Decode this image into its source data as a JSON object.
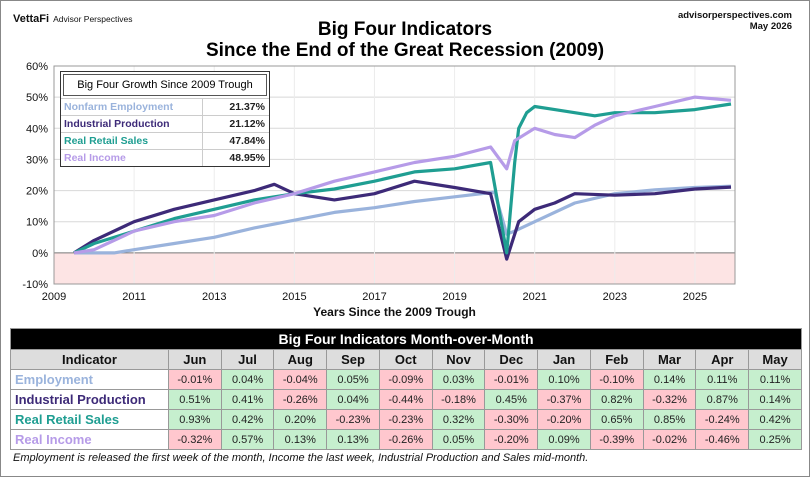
{
  "header": {
    "logo": "VettaFi",
    "logo_sub": "Advisor Perspectives",
    "site": "advisorperspectives.com",
    "date": "May 2026",
    "title_line1": "Big Four Indicators",
    "title_line2": "Since the End of the Great Recession (2009)"
  },
  "colors": {
    "employment": "#9ab3dc",
    "industrial": "#3d2a78",
    "retail": "#1f9e92",
    "income": "#b69be8",
    "negative_zone": "#fde4e4",
    "cell_pos": "#c6efce",
    "cell_neg": "#ffc7ce"
  },
  "legend": {
    "title": "Big Four Growth Since 2009 Trough",
    "items": [
      {
        "name": "Nonfarm Employment",
        "value": "21.37%"
      },
      {
        "name": "Industrial Production",
        "value": "21.12%"
      },
      {
        "name": "Real Retail Sales",
        "value": "47.84%"
      },
      {
        "name": "Real Income",
        "value": "48.95%"
      }
    ]
  },
  "chart_data": {
    "type": "line",
    "title": "Big Four Indicators Since the End of the Great Recession (2009)",
    "xlabel": "Years Since the 2009 Trough",
    "ylabel": "",
    "xlim": [
      2009,
      2026
    ],
    "ylim": [
      -10,
      60
    ],
    "x_ticks": [
      "2009",
      "2011",
      "2013",
      "2015",
      "2017",
      "2019",
      "2021",
      "2023",
      "2025"
    ],
    "y_ticks": [
      "-10%",
      "0%",
      "10%",
      "20%",
      "30%",
      "40%",
      "50%",
      "60%"
    ],
    "grid": true,
    "series": [
      {
        "name": "Nonfarm Employment",
        "points": [
          [
            2009.5,
            0
          ],
          [
            2010.5,
            0
          ],
          [
            2011,
            1
          ],
          [
            2012,
            3
          ],
          [
            2013,
            5
          ],
          [
            2014,
            8
          ],
          [
            2015,
            10.5
          ],
          [
            2016,
            13
          ],
          [
            2017,
            14.5
          ],
          [
            2018,
            16.5
          ],
          [
            2019,
            18
          ],
          [
            2020,
            19.5
          ],
          [
            2020.3,
            6
          ],
          [
            2020.5,
            7
          ],
          [
            2021,
            10
          ],
          [
            2022,
            16
          ],
          [
            2023,
            19
          ],
          [
            2024,
            20.2
          ],
          [
            2025,
            21
          ],
          [
            2025.9,
            21.4
          ]
        ]
      },
      {
        "name": "Industrial Production",
        "points": [
          [
            2009.5,
            0
          ],
          [
            2010,
            4
          ],
          [
            2011,
            10
          ],
          [
            2012,
            14
          ],
          [
            2013,
            17
          ],
          [
            2014,
            20
          ],
          [
            2014.5,
            22
          ],
          [
            2015,
            19
          ],
          [
            2016,
            17
          ],
          [
            2017,
            19
          ],
          [
            2018,
            23
          ],
          [
            2019,
            21
          ],
          [
            2019.9,
            19
          ],
          [
            2020.3,
            -2
          ],
          [
            2020.6,
            10
          ],
          [
            2021,
            14
          ],
          [
            2021.5,
            16
          ],
          [
            2022,
            19
          ],
          [
            2023,
            18.5
          ],
          [
            2024,
            19
          ],
          [
            2025,
            20.5
          ],
          [
            2025.9,
            21.1
          ]
        ]
      },
      {
        "name": "Real Retail Sales",
        "points": [
          [
            2009.5,
            0
          ],
          [
            2010,
            3
          ],
          [
            2011,
            7
          ],
          [
            2012,
            11
          ],
          [
            2013,
            14
          ],
          [
            2014,
            17
          ],
          [
            2015,
            19
          ],
          [
            2016,
            20.5
          ],
          [
            2017,
            23
          ],
          [
            2018,
            26
          ],
          [
            2019,
            27
          ],
          [
            2019.9,
            29
          ],
          [
            2020.3,
            0
          ],
          [
            2020.5,
            29
          ],
          [
            2020.6,
            40
          ],
          [
            2020.8,
            45
          ],
          [
            2021,
            47
          ],
          [
            2021.5,
            46
          ],
          [
            2022,
            45
          ],
          [
            2022.5,
            44
          ],
          [
            2023,
            45
          ],
          [
            2024,
            45
          ],
          [
            2025,
            46
          ],
          [
            2025.9,
            47.8
          ]
        ]
      },
      {
        "name": "Real Income",
        "points": [
          [
            2009.5,
            0
          ],
          [
            2010,
            1
          ],
          [
            2011,
            7
          ],
          [
            2012,
            10
          ],
          [
            2013,
            12
          ],
          [
            2014,
            16
          ],
          [
            2015,
            19
          ],
          [
            2016,
            23
          ],
          [
            2017,
            26
          ],
          [
            2018,
            29
          ],
          [
            2019,
            31
          ],
          [
            2019.9,
            34
          ],
          [
            2020.3,
            27
          ],
          [
            2020.5,
            36
          ],
          [
            2021,
            40
          ],
          [
            2021.5,
            38
          ],
          [
            2022,
            37
          ],
          [
            2022.5,
            41
          ],
          [
            2023,
            44
          ],
          [
            2024,
            47
          ],
          [
            2025,
            50
          ],
          [
            2025.9,
            49
          ]
        ]
      }
    ]
  },
  "table": {
    "title": "Big Four Indicators Month-over-Month",
    "header": "Indicator",
    "months": [
      "Jun",
      "Jul",
      "Aug",
      "Sep",
      "Oct",
      "Nov",
      "Dec",
      "Jan",
      "Feb",
      "Mar",
      "Apr",
      "May"
    ],
    "rows": [
      {
        "name": "Employment",
        "color": "#9ab3dc",
        "values": [
          "-0.01%",
          "0.04%",
          "-0.04%",
          "0.05%",
          "-0.09%",
          "0.03%",
          "-0.01%",
          "0.10%",
          "-0.10%",
          "0.14%",
          "0.11%",
          "0.11%"
        ]
      },
      {
        "name": "Industrial Production",
        "color": "#3d2a78",
        "values": [
          "0.51%",
          "0.41%",
          "-0.26%",
          "0.04%",
          "-0.44%",
          "-0.18%",
          "0.45%",
          "-0.37%",
          "0.82%",
          "-0.32%",
          "0.87%",
          "0.14%"
        ]
      },
      {
        "name": "Real Retail Sales",
        "color": "#1f9e92",
        "values": [
          "0.93%",
          "0.42%",
          "0.20%",
          "-0.23%",
          "-0.23%",
          "0.32%",
          "-0.30%",
          "-0.20%",
          "0.65%",
          "0.85%",
          "-0.24%",
          "0.42%"
        ]
      },
      {
        "name": "Real Income",
        "color": "#b69be8",
        "values": [
          "-0.32%",
          "0.57%",
          "0.13%",
          "0.13%",
          "-0.26%",
          "0.05%",
          "-0.20%",
          "0.09%",
          "-0.39%",
          "-0.02%",
          "-0.46%",
          "0.25%"
        ]
      }
    ]
  },
  "footnote": "Employment is released the first week of the month, Income the last week, Industrial Production and Sales mid-month."
}
